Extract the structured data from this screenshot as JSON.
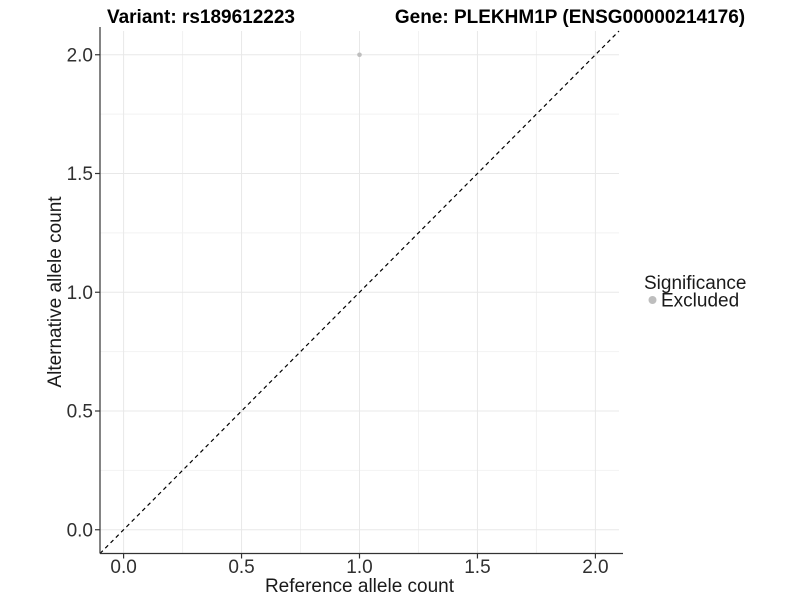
{
  "titles": {
    "variant": "Variant: rs189612223",
    "gene": "Gene: PLEKHM1P (ENSG00000214176)"
  },
  "legend": {
    "title": "Significance",
    "position": "right",
    "items": [
      {
        "label": "Excluded",
        "color": "#BEBEBE"
      }
    ]
  },
  "chart_data": {
    "type": "scatter",
    "title_left": "Variant: rs189612223",
    "title_right": "Gene: PLEKHM1P (ENSG00000214176)",
    "xlabel": "Reference allele count",
    "ylabel": "Alternative allele count",
    "xlim": [
      -0.1,
      2.1
    ],
    "ylim": [
      -0.1,
      2.1
    ],
    "xticks": [
      0.0,
      0.5,
      1.0,
      1.5,
      2.0
    ],
    "yticks": [
      0.0,
      0.5,
      1.0,
      1.5,
      2.0
    ],
    "xticks_minor": [
      0.25,
      0.75,
      1.25,
      1.75
    ],
    "yticks_minor": [
      0.25,
      0.75,
      1.25,
      1.75
    ],
    "grid": true,
    "legend_position": "right",
    "reference_line": {
      "kind": "identity",
      "from": [
        -0.1,
        -0.1
      ],
      "to": [
        2.1,
        2.1
      ],
      "style": "dashed",
      "color": "#000000"
    },
    "series": [
      {
        "name": "Excluded",
        "color": "#BEBEBE",
        "marker": "circle",
        "points": [
          [
            1.0,
            2.0
          ]
        ]
      }
    ]
  },
  "style": {
    "axis_color": "#333333",
    "tick_color": "#333333",
    "grid_major_color": "#E8E8E8",
    "grid_minor_color": "#F2F2F2",
    "point_radius": 2.3,
    "legend_key_radius": 4
  }
}
